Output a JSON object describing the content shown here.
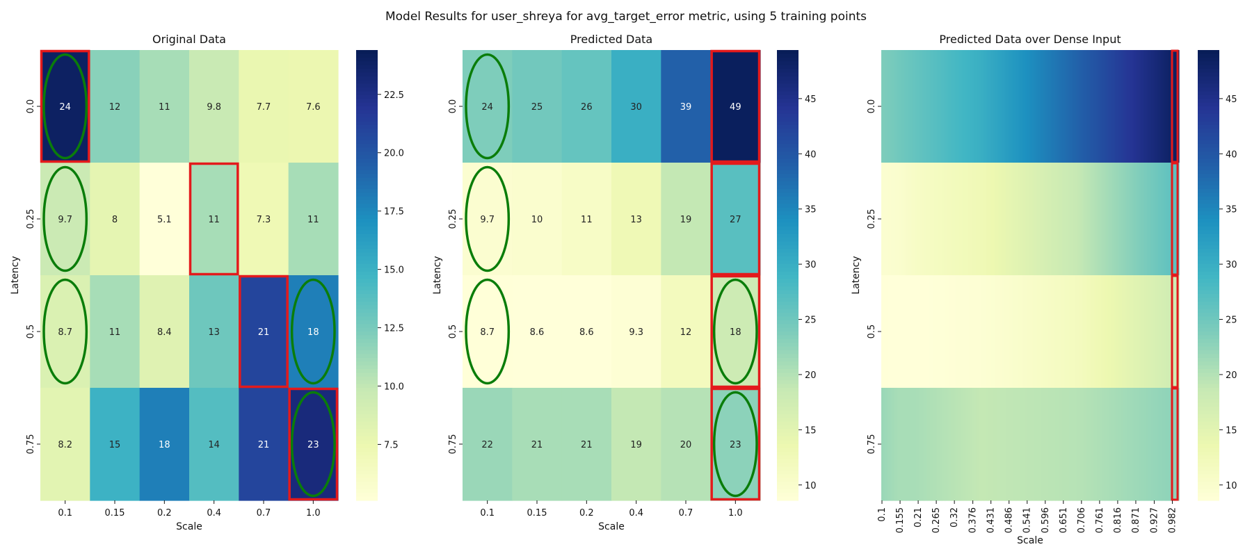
{
  "figure": {
    "title": "Model Results for user_shreya for avg_target_error metric, using 5 training points"
  },
  "colormap": "YlGnBu",
  "chart_data": [
    {
      "type": "heatmap",
      "title": "Original Data",
      "xlabel": "Scale",
      "ylabel": "Latency",
      "x_ticks": [
        "0.1",
        "0.15",
        "0.2",
        "0.4",
        "0.7",
        "1.0"
      ],
      "y_ticks": [
        "0.0",
        "0.25",
        "0.5",
        "0.75"
      ],
      "values": [
        [
          24,
          12,
          11,
          9.8,
          7.7,
          7.6
        ],
        [
          9.7,
          8,
          5.1,
          11,
          7.3,
          11
        ],
        [
          8.7,
          11,
          8.4,
          13,
          21,
          18
        ],
        [
          8.2,
          15,
          18,
          14,
          21,
          23
        ]
      ],
      "annotations": [
        [
          "24",
          "12",
          "11",
          "9.8",
          "7.7",
          "7.6"
        ],
        [
          "9.7",
          "8",
          "5.1",
          "11",
          "7.3",
          "11"
        ],
        [
          "8.7",
          "11",
          "8.4",
          "13",
          "21",
          "18"
        ],
        [
          "8.2",
          "15",
          "18",
          "14",
          "21",
          "23"
        ]
      ],
      "vmin": 5.1,
      "vmax": 24.4,
      "colorbar_ticks": [
        "7.5",
        "10.0",
        "12.5",
        "15.0",
        "17.5",
        "20.0",
        "22.5"
      ],
      "colorbar_tick_values": [
        7.5,
        10,
        12.5,
        15,
        17.5,
        20,
        22.5
      ],
      "highlight_boxes": [
        [
          0,
          0
        ],
        [
          1,
          3
        ],
        [
          2,
          4
        ],
        [
          3,
          5
        ]
      ],
      "highlight_ellipses": [
        [
          0,
          0
        ],
        [
          1,
          0
        ],
        [
          2,
          0
        ],
        [
          2,
          5
        ],
        [
          3,
          5
        ]
      ],
      "box_color": "#e31a1c",
      "ellipse_color": "#0a7d0a"
    },
    {
      "type": "heatmap",
      "title": "Predicted Data",
      "xlabel": "Scale",
      "ylabel": "Latency",
      "x_ticks": [
        "0.1",
        "0.15",
        "0.2",
        "0.4",
        "0.7",
        "1.0"
      ],
      "y_ticks": [
        "0.0",
        "0.25",
        "0.5",
        "0.75"
      ],
      "values": [
        [
          24,
          25,
          26,
          30,
          39,
          49
        ],
        [
          9.7,
          10,
          11,
          13,
          19,
          27
        ],
        [
          8.7,
          8.6,
          8.6,
          9.3,
          12,
          18
        ],
        [
          22,
          21,
          21,
          19,
          20,
          23
        ]
      ],
      "annotations": [
        [
          "24",
          "25",
          "26",
          "30",
          "39",
          "49"
        ],
        [
          "9.7",
          "10",
          "11",
          "13",
          "19",
          "27"
        ],
        [
          "8.7",
          "8.6",
          "8.6",
          "9.3",
          "12",
          "18"
        ],
        [
          "22",
          "21",
          "21",
          "19",
          "20",
          "23"
        ]
      ],
      "vmin": 8.6,
      "vmax": 49.4,
      "colorbar_ticks": [
        "10",
        "15",
        "20",
        "25",
        "30",
        "35",
        "40",
        "45"
      ],
      "colorbar_tick_values": [
        10,
        15,
        20,
        25,
        30,
        35,
        40,
        45
      ],
      "highlight_columns": [
        5
      ],
      "highlight_ellipses": [
        [
          0,
          0
        ],
        [
          1,
          0
        ],
        [
          2,
          0
        ],
        [
          2,
          5
        ],
        [
          3,
          5
        ]
      ],
      "box_color": "#e31a1c",
      "ellipse_color": "#0a7d0a"
    },
    {
      "type": "heatmap",
      "title": "Predicted Data over Dense Input",
      "xlabel": "Scale",
      "ylabel": "Latency",
      "x_ticks": [
        "0.1",
        "0.155",
        "0.21",
        "0.265",
        "0.32",
        "0.376",
        "0.431",
        "0.486",
        "0.541",
        "0.596",
        "0.651",
        "0.706",
        "0.761",
        "0.816",
        "0.871",
        "0.927",
        "0.982"
      ],
      "x_tick_values": [
        0.1,
        0.155,
        0.21,
        0.265,
        0.32,
        0.376,
        0.431,
        0.486,
        0.541,
        0.596,
        0.651,
        0.706,
        0.761,
        0.816,
        0.871,
        0.927,
        0.982
      ],
      "x_range": [
        0.1,
        1.0
      ],
      "y_ticks": [
        "0.0",
        "0.25",
        "0.5",
        "0.75"
      ],
      "dense_anchor_x": [
        0.1,
        0.15,
        0.2,
        0.4,
        0.7,
        1.0
      ],
      "dense_anchor_values": [
        [
          24,
          25,
          26,
          30,
          39,
          49
        ],
        [
          9.7,
          10,
          11,
          13,
          19,
          27
        ],
        [
          8.7,
          8.6,
          8.6,
          9.3,
          12,
          18
        ],
        [
          22,
          21,
          21,
          19,
          20,
          23
        ]
      ],
      "vmin": 8.6,
      "vmax": 49.4,
      "colorbar_ticks": [
        "10",
        "15",
        "20",
        "25",
        "30",
        "35",
        "40",
        "45"
      ],
      "colorbar_tick_values": [
        10,
        15,
        20,
        25,
        30,
        35,
        40,
        45
      ],
      "highlight_x_at": 1.0,
      "box_color": "#e31a1c"
    }
  ]
}
